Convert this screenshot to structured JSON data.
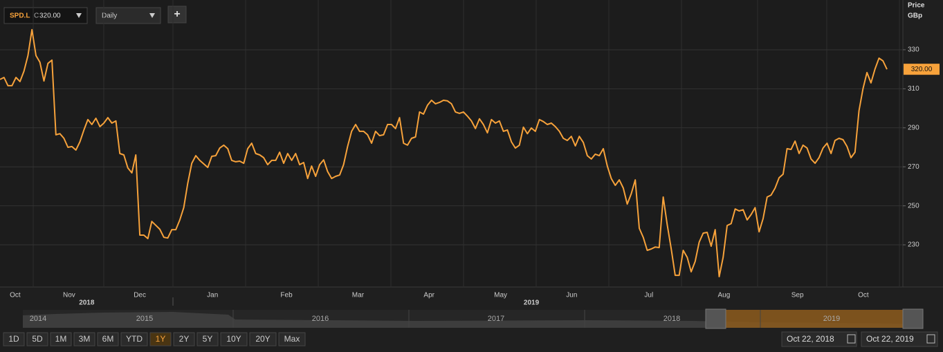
{
  "toolbar": {
    "symbol": "SPD.L",
    "close_prefix": "C",
    "close": "320.00",
    "interval": "Daily",
    "add": "+"
  },
  "chart_data": {
    "type": "line",
    "y_axis_title": [
      "Price",
      "GBp"
    ],
    "color": "#f7a23b",
    "values": [
      314.8,
      315.8,
      311.6,
      311.6,
      315.8,
      313.7,
      319,
      327,
      340.3,
      327,
      323.6,
      314,
      323,
      324.7,
      286.4,
      287,
      284.6,
      280,
      280.4,
      278.6,
      282.8,
      288.9,
      294.2,
      291.7,
      294.9,
      290.6,
      292.4,
      295.2,
      292.4,
      293.5,
      276.8,
      276.1,
      269.4,
      266.9,
      276.1,
      235,
      235,
      233.2,
      242,
      240,
      238,
      233.9,
      233.5,
      237.8,
      237.8,
      242.8,
      249.1,
      261.6,
      271.8,
      275.7,
      273.3,
      271.5,
      269.7,
      275.4,
      275.7,
      279.6,
      281.1,
      279.3,
      273.3,
      272.6,
      272.9,
      271.8,
      279.3,
      282.1,
      276.8,
      276.1,
      274.7,
      271.1,
      273.3,
      273.3,
      277.5,
      271.8,
      276.8,
      273.3,
      276.8,
      271.1,
      272.2,
      264,
      270.4,
      265.1,
      271.1,
      273.6,
      267.6,
      264,
      265.1,
      265.8,
      271.1,
      280.4,
      288.2,
      291.7,
      288.2,
      288.2,
      286.4,
      282.1,
      288.2,
      286,
      286.4,
      291.7,
      291.7,
      289.6,
      295.2,
      282.1,
      281.1,
      284.6,
      285.3,
      298.1,
      297,
      301.6,
      304.1,
      302.3,
      303,
      304.1,
      303.8,
      302.3,
      298.1,
      297.4,
      298.1,
      296,
      293.5,
      289.6,
      294.6,
      291.7,
      287.4,
      294.2,
      292.4,
      293.5,
      288.2,
      288.9,
      282.8,
      279.6,
      281.1,
      290.3,
      287,
      289.9,
      288.2,
      294.2,
      293.2,
      291.7,
      292.4,
      290.6,
      288.2,
      284.6,
      283.5,
      285.6,
      280.7,
      285.6,
      282.5,
      275.7,
      274,
      276.5,
      275.7,
      279.3,
      270.4,
      264,
      260.5,
      263.3,
      259.1,
      250.9,
      256.2,
      263.3,
      238.5,
      233.9,
      227.2,
      227.9,
      228.9,
      228.6,
      254.5,
      240.3,
      227.9,
      214.4,
      214.4,
      227.2,
      223.6,
      216.2,
      221.5,
      231.4,
      236,
      236.4,
      229.3,
      237.8,
      213.7,
      223.6,
      239.9,
      240.9,
      248.4,
      247.4,
      248,
      242.8,
      245.6,
      249.1,
      236.7,
      243.5,
      254.5,
      255.5,
      259.1,
      264.4,
      266.2,
      279.3,
      278.9,
      283.2,
      276.8,
      281.1,
      279.6,
      274,
      271.8,
      274.7,
      279.6,
      282.1,
      276.8,
      283.5,
      284.6,
      283.9,
      280.4,
      274.7,
      277.5,
      298.8,
      310.1,
      318.3,
      313,
      320.1,
      325.7,
      324.3,
      320
    ],
    "last_label": "320.00",
    "xlim": [
      0,
      222
    ],
    "xticks": [
      {
        "value": 3.8,
        "label": "Oct"
      },
      {
        "value": 17.3,
        "label": "Nov"
      },
      {
        "value": 35,
        "label": "Dec"
      },
      {
        "value": 53.2,
        "label": "Jan"
      },
      {
        "value": 71.7,
        "label": "Feb"
      },
      {
        "value": 89.6,
        "label": "Mar"
      },
      {
        "value": 107.4,
        "label": "Apr"
      },
      {
        "value": 125.3,
        "label": "May"
      },
      {
        "value": 143.1,
        "label": "Jun"
      },
      {
        "value": 162.4,
        "label": "Jul"
      },
      {
        "value": 181.2,
        "label": "Aug"
      },
      {
        "value": 199.6,
        "label": "Sep"
      },
      {
        "value": 216.1,
        "label": "Oct"
      }
    ],
    "year_labels": [
      {
        "value": 21.7,
        "label": "2018"
      },
      {
        "value": 133,
        "label": "2019"
      }
    ],
    "ylim": [
      208.4,
      355.5
    ],
    "yticks": [
      230,
      250,
      270,
      290,
      310,
      330
    ],
    "grid": true
  },
  "navigator": {
    "years": [
      "2014",
      "2015",
      "2016",
      "2017",
      "2018",
      "2019"
    ]
  },
  "range_buttons": {
    "items": [
      "1D",
      "5D",
      "1M",
      "3M",
      "6M",
      "YTD",
      "1Y",
      "2Y",
      "5Y",
      "10Y",
      "20Y",
      "Max"
    ],
    "active": "1Y"
  },
  "date_range": {
    "from": "Oct 22, 2018",
    "to": "Oct 22, 2019"
  }
}
